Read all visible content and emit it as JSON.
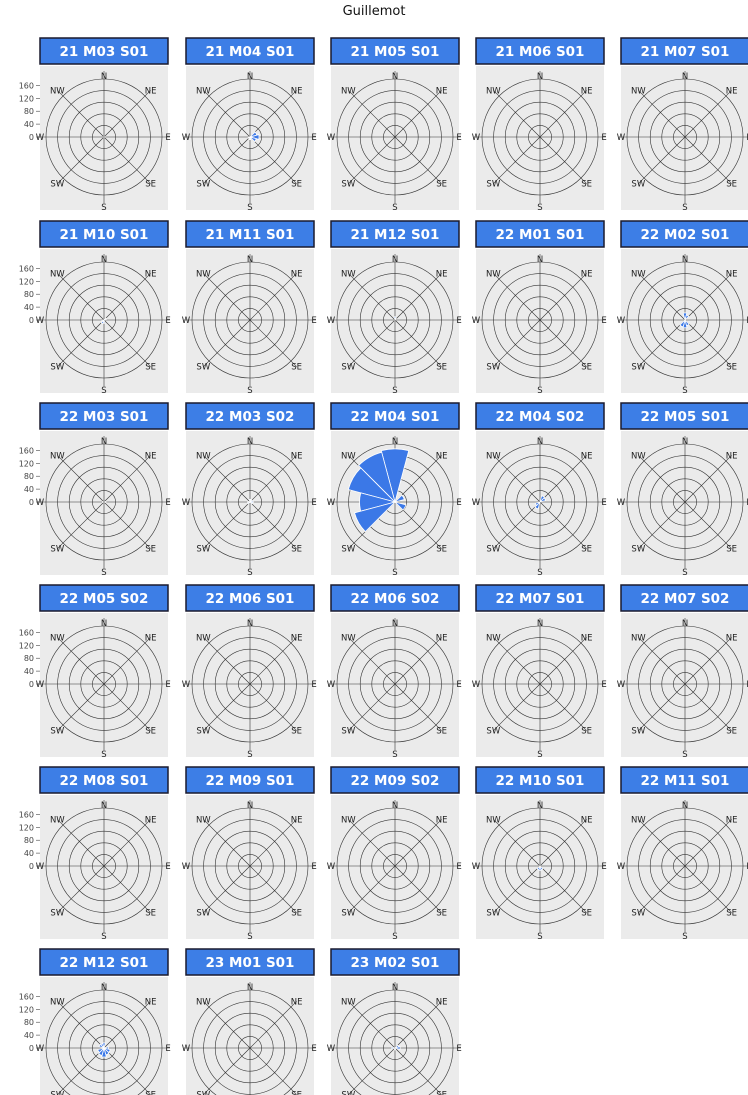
{
  "title": "Guillemot",
  "colors": {
    "strip_fill": "#3d7ee6",
    "strip_border": "#1a1a2e",
    "panel_bg": "#ebebeb",
    "grid_line": "#333333",
    "bar_fill": "#3b78e7"
  },
  "chart_data": {
    "type": "polar-bar",
    "title": "Guillemot",
    "directions": [
      "N",
      "NE",
      "E",
      "SE",
      "S",
      "SW",
      "W",
      "NW"
    ],
    "r_ticks": [
      0,
      40,
      80,
      120,
      160
    ],
    "r_range": [
      0,
      180
    ],
    "sector_width_deg": 30,
    "panels": [
      {
        "label": "21 M03 S01",
        "bars": [
          {
            "angle": 90,
            "value": 3
          },
          {
            "angle": 270,
            "value": 2
          }
        ]
      },
      {
        "label": "21 M04 S01",
        "bars": [
          {
            "angle": 60,
            "value": 22
          },
          {
            "angle": 90,
            "value": 28
          },
          {
            "angle": 120,
            "value": 20
          },
          {
            "angle": 180,
            "value": 8
          },
          {
            "angle": 240,
            "value": 6
          }
        ]
      },
      {
        "label": "21 M05 S01",
        "bars": []
      },
      {
        "label": "21 M06 S01",
        "bars": []
      },
      {
        "label": "21 M07 S01",
        "bars": []
      },
      {
        "label": "21 M10 S01",
        "bars": [
          {
            "angle": 60,
            "value": 8
          },
          {
            "angle": 180,
            "value": 10
          },
          {
            "angle": 210,
            "value": 12
          },
          {
            "angle": 240,
            "value": 8
          }
        ]
      },
      {
        "label": "21 M11 S01",
        "bars": []
      },
      {
        "label": "21 M12 S01",
        "bars": [
          {
            "angle": 0,
            "value": 10
          },
          {
            "angle": 30,
            "value": 6
          }
        ]
      },
      {
        "label": "22 M01 S01",
        "bars": []
      },
      {
        "label": "22 M02 S01",
        "bars": [
          {
            "angle": 0,
            "value": 22
          },
          {
            "angle": 30,
            "value": 16
          },
          {
            "angle": 150,
            "value": 18
          },
          {
            "angle": 180,
            "value": 24
          },
          {
            "angle": 210,
            "value": 22
          }
        ]
      },
      {
        "label": "22 M03 S01",
        "bars": [
          {
            "angle": 90,
            "value": 6
          },
          {
            "angle": 270,
            "value": 5
          }
        ]
      },
      {
        "label": "22 M03 S02",
        "bars": [
          {
            "angle": 0,
            "value": 8
          },
          {
            "angle": 30,
            "value": 8
          },
          {
            "angle": 90,
            "value": 10
          },
          {
            "angle": 120,
            "value": 8
          },
          {
            "angle": 240,
            "value": 8
          },
          {
            "angle": 270,
            "value": 7
          }
        ]
      },
      {
        "label": "22 M04 S01",
        "bars": [
          {
            "angle": 0,
            "value": 165
          },
          {
            "angle": 300,
            "value": 150
          },
          {
            "angle": 330,
            "value": 160
          },
          {
            "angle": 270,
            "value": 110
          },
          {
            "angle": 240,
            "value": 130
          },
          {
            "angle": 60,
            "value": 30
          },
          {
            "angle": 120,
            "value": 35
          }
        ]
      },
      {
        "label": "22 M04 S02",
        "bars": [
          {
            "angle": 30,
            "value": 20
          },
          {
            "angle": 60,
            "value": 18
          },
          {
            "angle": 210,
            "value": 22
          },
          {
            "angle": 240,
            "value": 15
          }
        ]
      },
      {
        "label": "22 M05 S01",
        "bars": []
      },
      {
        "label": "22 M05 S02",
        "bars": []
      },
      {
        "label": "22 M06 S01",
        "bars": []
      },
      {
        "label": "22 M06 S02",
        "bars": []
      },
      {
        "label": "22 M07 S01",
        "bars": []
      },
      {
        "label": "22 M07 S02",
        "bars": []
      },
      {
        "label": "22 M08 S01",
        "bars": []
      },
      {
        "label": "22 M09 S01",
        "bars": []
      },
      {
        "label": "22 M09 S02",
        "bars": []
      },
      {
        "label": "22 M10 S01",
        "bars": [
          {
            "angle": 180,
            "value": 14
          },
          {
            "angle": 150,
            "value": 12
          },
          {
            "angle": 210,
            "value": 12
          }
        ]
      },
      {
        "label": "22 M11 S01",
        "bars": []
      },
      {
        "label": "22 M12 S01",
        "bars": [
          {
            "angle": 120,
            "value": 20
          },
          {
            "angle": 150,
            "value": 22
          },
          {
            "angle": 180,
            "value": 28
          },
          {
            "angle": 210,
            "value": 24
          },
          {
            "angle": 240,
            "value": 20
          },
          {
            "angle": 90,
            "value": 14
          },
          {
            "angle": 300,
            "value": 16
          },
          {
            "angle": 330,
            "value": 14
          },
          {
            "angle": 0,
            "value": 16
          }
        ]
      },
      {
        "label": "23 M01 S01",
        "bars": []
      },
      {
        "label": "23 M02 S01",
        "bars": [
          {
            "angle": 60,
            "value": 12
          },
          {
            "angle": 90,
            "value": 16
          },
          {
            "angle": 270,
            "value": 10
          },
          {
            "angle": 180,
            "value": 6
          }
        ]
      }
    ]
  }
}
